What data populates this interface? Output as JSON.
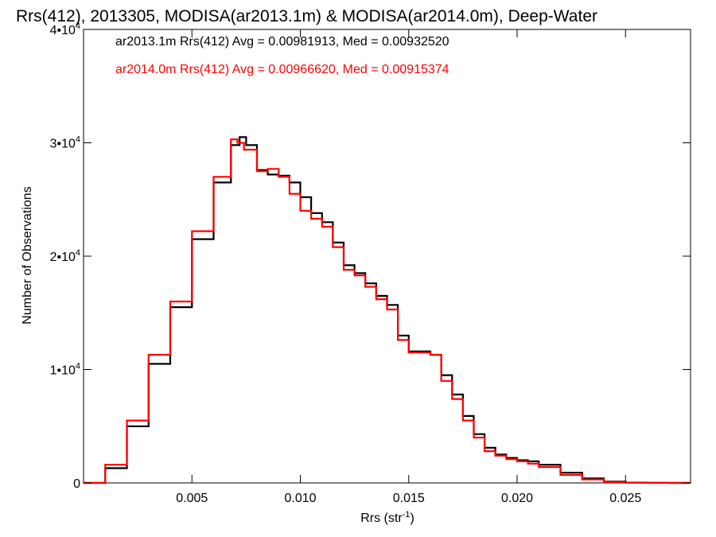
{
  "chart_data": {
    "type": "line",
    "title": "Rrs(412), 2013305, MODISA(ar2013.1m) & MODISA(ar2014.0m), Deep-Water",
    "xlabel": {
      "base": "Rrs (str",
      "sup": "-1",
      "end": ")"
    },
    "ylabel": "Number of Observations",
    "xlim": [
      0.0,
      0.028
    ],
    "ylim": [
      0,
      40000
    ],
    "grid": false,
    "legend_position": "top-left",
    "x_ticks": [
      {
        "value": 0.005,
        "label": "0.005"
      },
      {
        "value": 0.01,
        "label": "0.010"
      },
      {
        "value": 0.015,
        "label": "0.015"
      },
      {
        "value": 0.02,
        "label": "0.020"
      },
      {
        "value": 0.025,
        "label": "0.025"
      }
    ],
    "y_ticks": [
      {
        "value": 0,
        "base": "0",
        "sup": ""
      },
      {
        "value": 10000,
        "base": "1•10",
        "sup": "4"
      },
      {
        "value": 20000,
        "base": "2•10",
        "sup": "4"
      },
      {
        "value": 30000,
        "base": "3•10",
        "sup": "4"
      },
      {
        "value": 40000,
        "base": "4•10",
        "sup": "4"
      }
    ],
    "series": [
      {
        "name": "ar2013.1m Rrs(412) Avg = 0.00981913, Med = 0.00932520",
        "color": "#000000",
        "x": [
          0.0,
          0.001,
          0.002,
          0.003,
          0.004,
          0.005,
          0.006,
          0.0068,
          0.0072,
          0.0075,
          0.008,
          0.0085,
          0.009,
          0.0095,
          0.01,
          0.0105,
          0.011,
          0.0115,
          0.012,
          0.0125,
          0.013,
          0.0135,
          0.014,
          0.0145,
          0.015,
          0.0155,
          0.016,
          0.0165,
          0.017,
          0.0175,
          0.018,
          0.0185,
          0.019,
          0.0195,
          0.02,
          0.0205,
          0.021,
          0.022,
          0.023,
          0.024,
          0.025,
          0.026,
          0.027,
          0.028
        ],
        "values": [
          0,
          1300,
          5000,
          10500,
          15500,
          21500,
          26500,
          29800,
          30500,
          29800,
          27600,
          27200,
          27100,
          26500,
          25200,
          23800,
          23000,
          21200,
          19200,
          18500,
          17600,
          16500,
          15700,
          13000,
          11600,
          11600,
          11300,
          9500,
          7800,
          5900,
          4300,
          3100,
          2500,
          2200,
          2000,
          1900,
          1600,
          900,
          400,
          120,
          30,
          5,
          0,
          0
        ]
      },
      {
        "name": "ar2014.0m Rrs(412) Avg = 0.00966620, Med = 0.00915374",
        "color": "#ff0000",
        "x": [
          0.0,
          0.001,
          0.002,
          0.003,
          0.004,
          0.005,
          0.006,
          0.0068,
          0.0071,
          0.0074,
          0.008,
          0.0085,
          0.009,
          0.0095,
          0.01,
          0.0105,
          0.011,
          0.0115,
          0.012,
          0.0125,
          0.013,
          0.0135,
          0.014,
          0.0145,
          0.015,
          0.0155,
          0.016,
          0.0165,
          0.017,
          0.0175,
          0.018,
          0.0185,
          0.019,
          0.0195,
          0.02,
          0.0205,
          0.021,
          0.022,
          0.023,
          0.024,
          0.025,
          0.026,
          0.027,
          0.028
        ],
        "values": [
          0,
          1600,
          5500,
          11300,
          16000,
          22200,
          27000,
          30300,
          30000,
          29400,
          27500,
          27700,
          27000,
          25500,
          24000,
          23300,
          22600,
          20800,
          18800,
          18300,
          17300,
          16200,
          15300,
          12600,
          11500,
          11500,
          11300,
          9000,
          7400,
          5500,
          4000,
          2800,
          2400,
          2100,
          1900,
          1700,
          1400,
          700,
          300,
          80,
          20,
          3,
          0,
          0
        ]
      }
    ]
  }
}
